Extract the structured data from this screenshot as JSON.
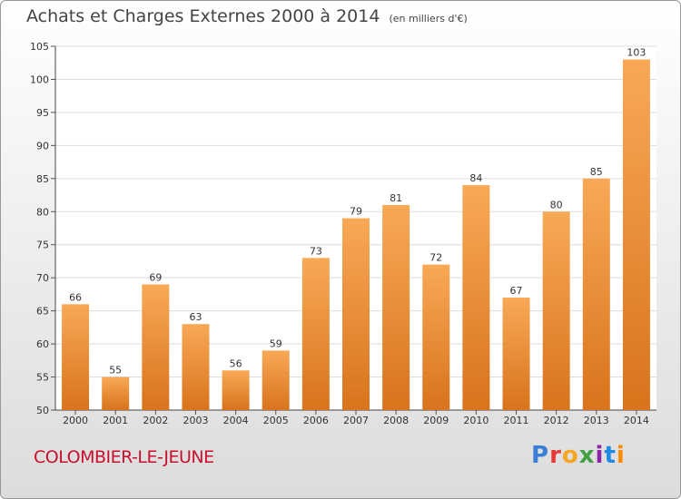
{
  "title": "Achats et Charges Externes 2000 à 2014",
  "subtitle": "(en milliers d'€)",
  "commune": "COLOMBIER-LE-JEUNE",
  "brand": {
    "text": "Proxiti",
    "colors": [
      "#3a7fd5",
      "#e53935",
      "#f5a623",
      "#43a047",
      "#8e24aa",
      "#1e88e5",
      "#fb8c00"
    ]
  },
  "colors": {
    "bar_top": "#f8a956",
    "bar_bottom": "#d9731c",
    "commune": "#c8102e"
  },
  "chart_data": {
    "type": "bar",
    "title": "Achats et Charges Externes 2000 à 2014",
    "categories": [
      "2000",
      "2001",
      "2002",
      "2003",
      "2004",
      "2005",
      "2006",
      "2007",
      "2008",
      "2009",
      "2010",
      "2011",
      "2012",
      "2013",
      "2014"
    ],
    "values": [
      66,
      55,
      69,
      63,
      56,
      59,
      73,
      79,
      81,
      72,
      84,
      67,
      80,
      85,
      103
    ],
    "ylim": [
      50,
      105
    ],
    "yticks": [
      50,
      55,
      60,
      65,
      70,
      75,
      80,
      85,
      90,
      95,
      100,
      105
    ],
    "grid": true
  }
}
